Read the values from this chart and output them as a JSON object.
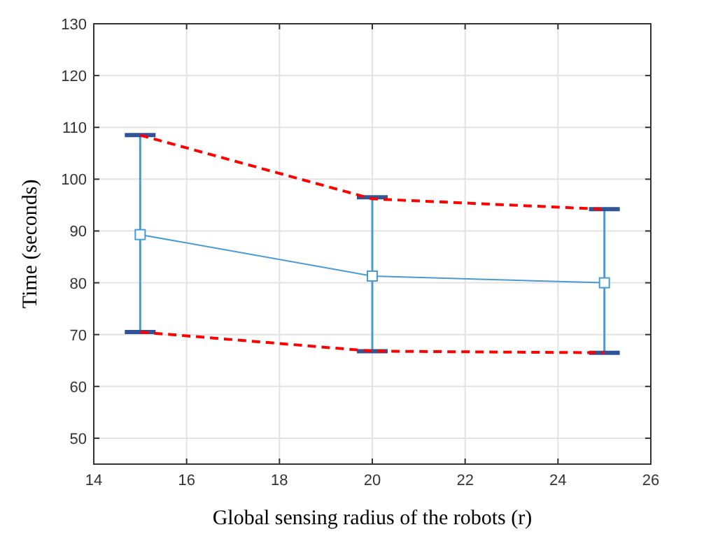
{
  "chart_data": {
    "type": "line",
    "xlabel": "Global sensing radius of the robots (r)",
    "ylabel": "Time (seconds)",
    "x": [
      15,
      20,
      25
    ],
    "series": [
      {
        "color": "#4a9ad6",
        "values": [
          89.3,
          81.3,
          80
        ],
        "errors": [
          [
            70.5,
            108.5
          ],
          [
            66.8,
            96.5
          ],
          [
            66.5,
            94.2
          ]
        ],
        "marker": "square",
        "line_style": "solid"
      },
      {
        "color": "#ff0000",
        "values": [
          108.5,
          96.2,
          94.2
        ],
        "marker": "none",
        "line_style": "dashed"
      },
      {
        "color": "#ff0000",
        "values": [
          70.5,
          66.8,
          66.5
        ],
        "marker": "none",
        "line_style": "dashed"
      }
    ],
    "xlim": [
      14,
      26
    ],
    "xticks": [
      14,
      16,
      18,
      20,
      22,
      24,
      26
    ],
    "ylim": [
      45,
      130
    ],
    "yticks": [
      50,
      60,
      70,
      80,
      90,
      100,
      110,
      120,
      130
    ],
    "grid": true
  }
}
